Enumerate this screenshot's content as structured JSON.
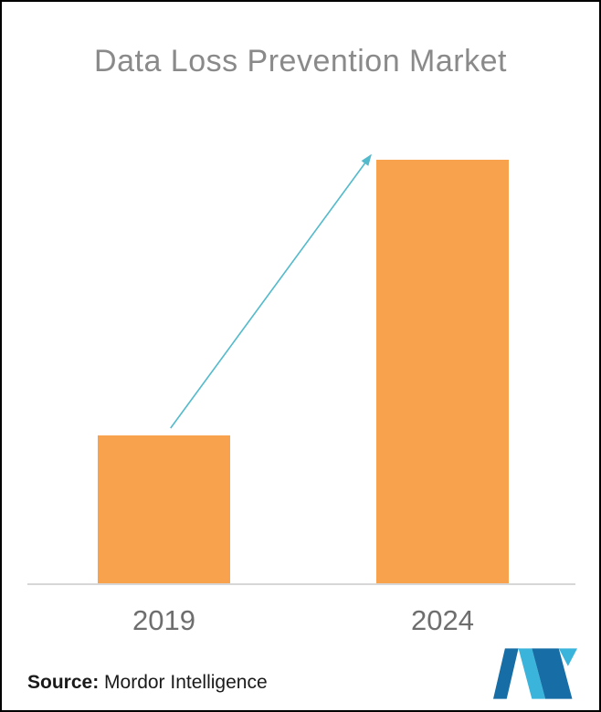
{
  "chart_data": {
    "type": "bar",
    "title": "Data Loss Prevention Market",
    "categories": [
      "2019",
      "2024"
    ],
    "values": [
      35,
      100
    ],
    "values_note": "no numeric value labels shown in chart; values are relative estimates from bar heights",
    "ylim": [
      0,
      100
    ],
    "xlabel": "",
    "ylabel": "",
    "grid": false,
    "legend": "none",
    "bar_color": "#F9A24E",
    "arrow_color": "#53BACB",
    "annotation": "teal growth arrow from top of 2019 bar to top of 2024 bar"
  },
  "footer": {
    "source_label": "Source:",
    "source_text": "Mordor Intelligence"
  },
  "logo": {
    "name": "mordor-intelligence-logo",
    "dark_blue": "#176DA6",
    "light_blue": "#3BB4DC"
  },
  "frame": {
    "border_color": "#000000",
    "background": "#FFFFFF"
  }
}
